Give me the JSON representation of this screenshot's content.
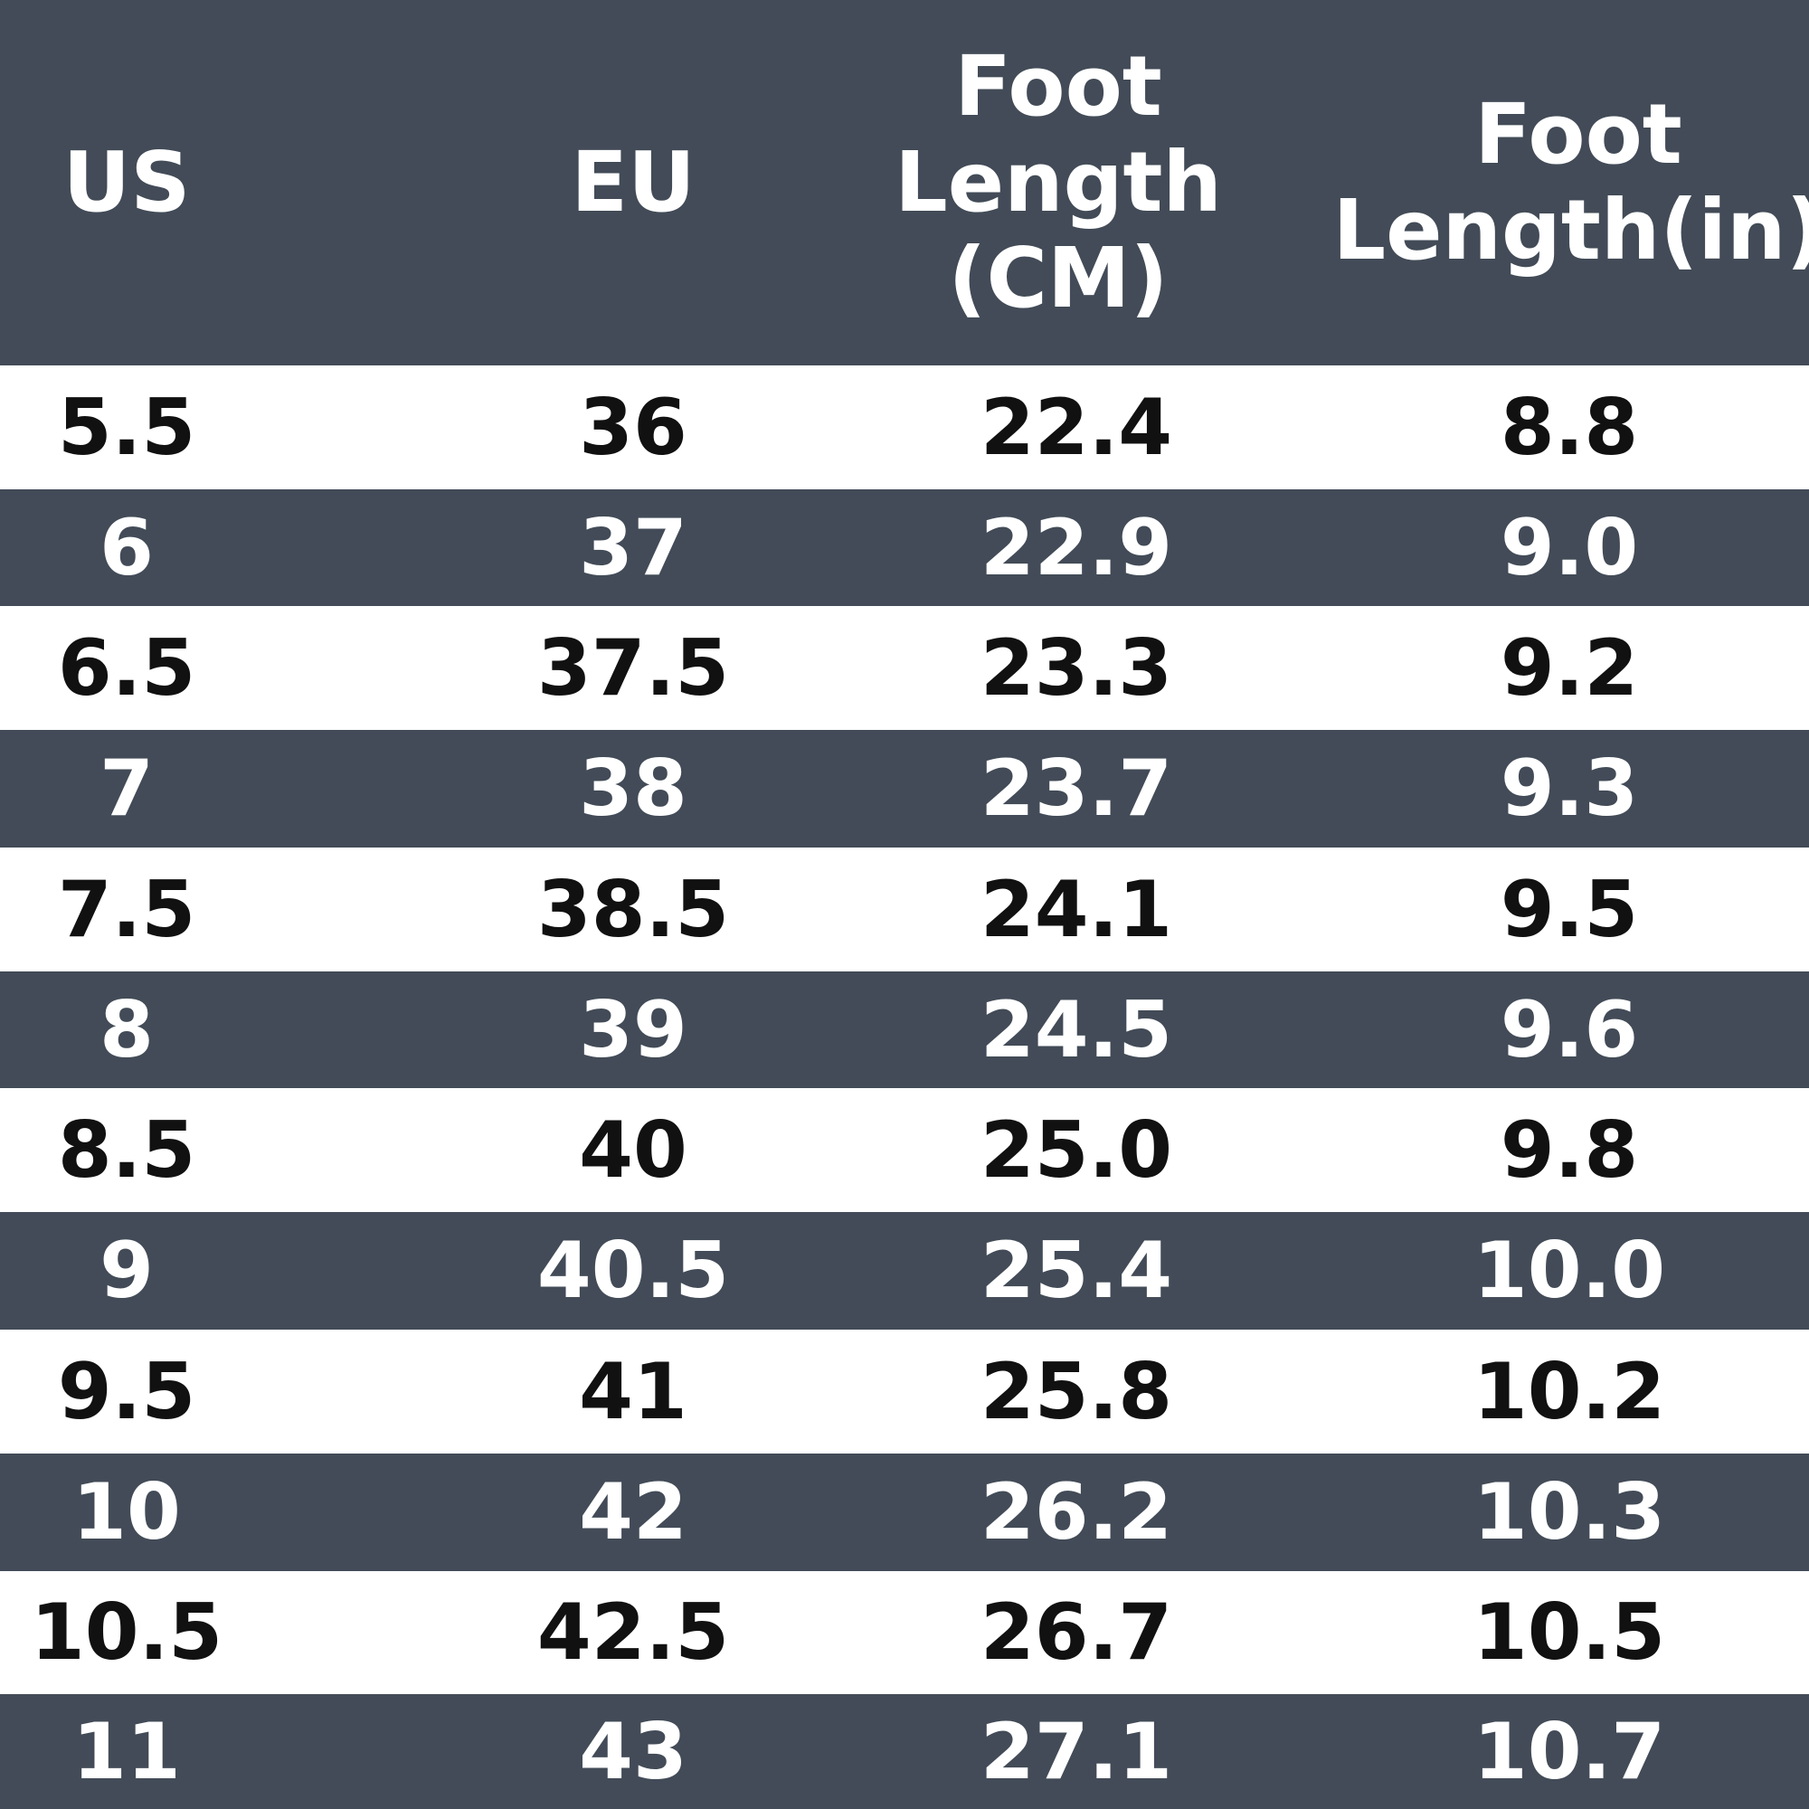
{
  "table": {
    "headers": {
      "us": "US",
      "eu": "EU",
      "cm": "Foot\nLength\n(CM)",
      "in": "Foot\nLength(in)"
    },
    "rows": [
      {
        "us": "5.5",
        "eu": "36",
        "cm": "22.4",
        "in": "8.8"
      },
      {
        "us": "6",
        "eu": "37",
        "cm": "22.9",
        "in": "9.0"
      },
      {
        "us": "6.5",
        "eu": "37.5",
        "cm": "23.3",
        "in": "9.2"
      },
      {
        "us": "7",
        "eu": "38",
        "cm": "23.7",
        "in": "9.3"
      },
      {
        "us": "7.5",
        "eu": "38.5",
        "cm": "24.1",
        "in": "9.5"
      },
      {
        "us": "8",
        "eu": "39",
        "cm": "24.5",
        "in": "9.6"
      },
      {
        "us": "8.5",
        "eu": "40",
        "cm": "25.0",
        "in": "9.8"
      },
      {
        "us": "9",
        "eu": "40.5",
        "cm": "25.4",
        "in": "10.0"
      },
      {
        "us": "9.5",
        "eu": "41",
        "cm": "25.8",
        "in": "10.2"
      },
      {
        "us": "10",
        "eu": "42",
        "cm": "26.2",
        "in": "10.3"
      },
      {
        "us": "10.5",
        "eu": "42.5",
        "cm": "26.7",
        "in": "10.5"
      },
      {
        "us": "11",
        "eu": "43",
        "cm": "27.1",
        "in": "10.7"
      }
    ]
  },
  "colors": {
    "dark_band": "#424b57",
    "light_band": "#ffffff",
    "dark_text": "#111111",
    "light_text": "#ffffff"
  }
}
